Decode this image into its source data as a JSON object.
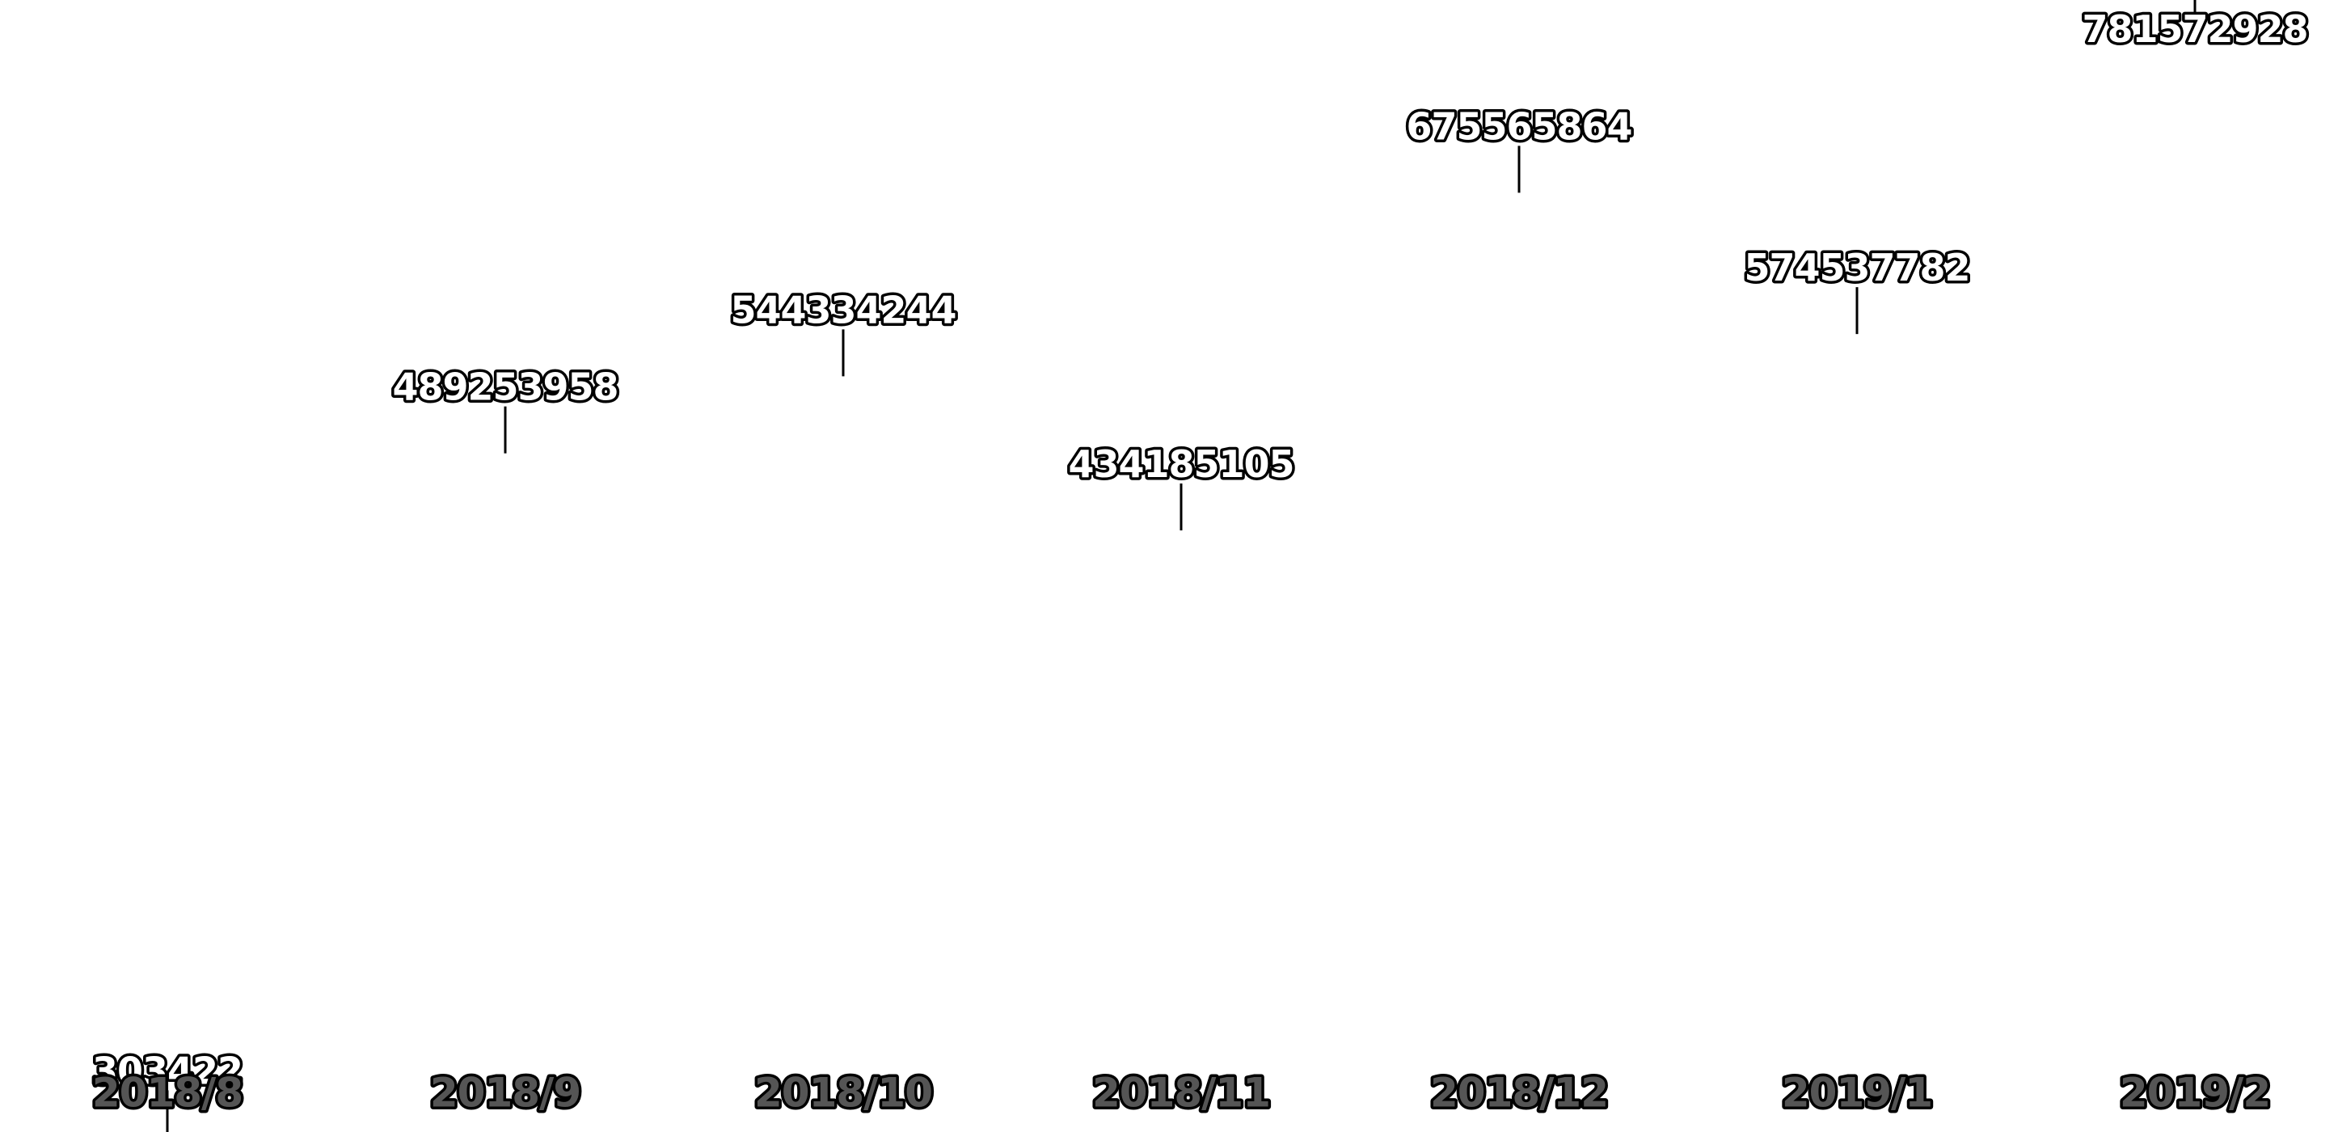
{
  "chart_data": {
    "type": "line",
    "title": "",
    "xlabel": "",
    "ylabel": "",
    "categories": [
      "2018/8",
      "2018/9",
      "2018/10",
      "2018/11",
      "2018/12",
      "2019/1",
      "2019/2"
    ],
    "series": [
      {
        "values": [
          303422,
          489253958,
          544334244,
          434185105,
          675565864,
          574537782,
          781572928
        ],
        "labels": [
          "303422",
          "489253958",
          "544334244",
          "434185105",
          "675565864",
          "574537782",
          "781572928"
        ]
      }
    ],
    "ylim": [
      0,
      781572928
    ],
    "grid": false,
    "legend": "none",
    "line_visible": false,
    "colors": {
      "label_fill": "#ffffff",
      "label_outline": "#000000",
      "tick_fill": "#555555",
      "leader": "#000000"
    }
  }
}
